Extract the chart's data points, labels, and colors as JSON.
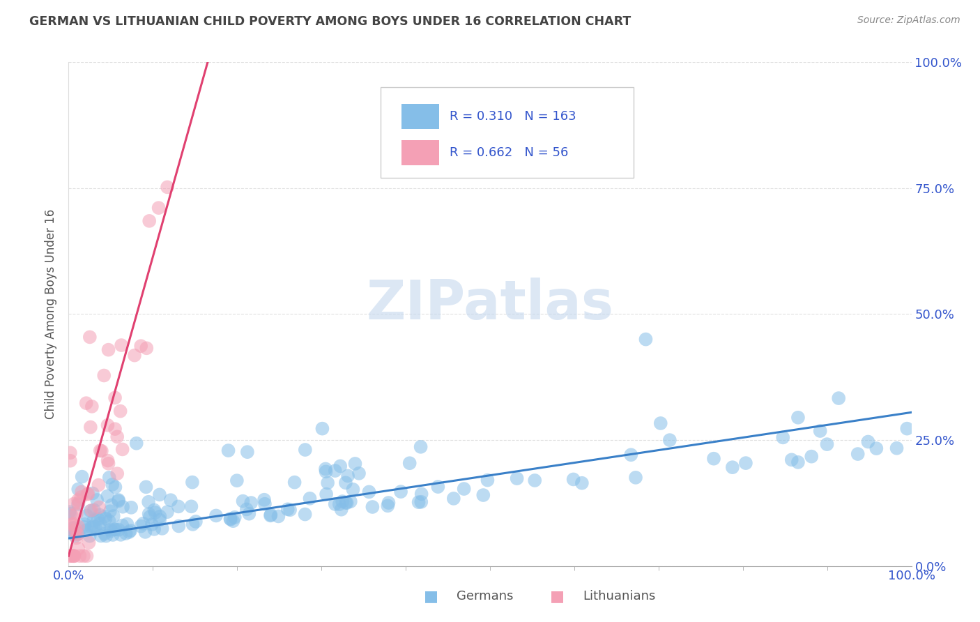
{
  "title": "GERMAN VS LITHUANIAN CHILD POVERTY AMONG BOYS UNDER 16 CORRELATION CHART",
  "source": "Source: ZipAtlas.com",
  "ylabel": "Child Poverty Among Boys Under 16",
  "watermark": "ZIPatlas",
  "xlim": [
    0.0,
    1.0
  ],
  "ylim": [
    0.0,
    1.0
  ],
  "xtick_positions": [
    0.0,
    1.0
  ],
  "xtick_labels": [
    "0.0%",
    "100.0%"
  ],
  "ytick_positions": [
    0.0,
    0.25,
    0.5,
    0.75,
    1.0
  ],
  "ytick_labels": [
    "0.0%",
    "25.0%",
    "50.0%",
    "75.0%",
    "100.0%"
  ],
  "german_R": 0.31,
  "german_N": 163,
  "lithuanian_R": 0.662,
  "lithuanian_N": 56,
  "german_color": "#85BEE8",
  "lithuanian_color": "#F4A0B5",
  "german_line_color": "#3A80C8",
  "lithuanian_line_color": "#E04070",
  "background_color": "#FFFFFF",
  "grid_color": "#CCCCCC",
  "title_color": "#444444",
  "axis_label_color": "#555555",
  "legend_text_color": "#3355CC",
  "watermark_color": "#C5D8EE",
  "source_color": "#888888"
}
